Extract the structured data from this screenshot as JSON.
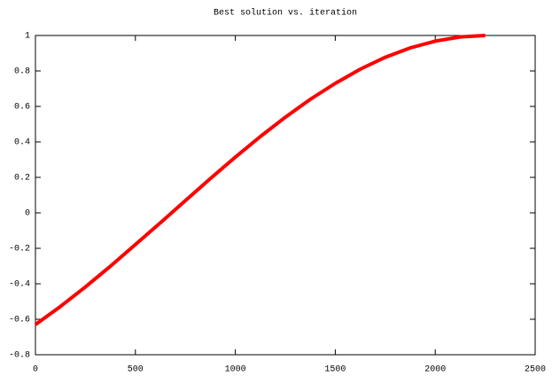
{
  "chart_data": {
    "type": "line",
    "title": "Best solution vs. iteration",
    "x": [
      0,
      125,
      250,
      375,
      500,
      625,
      750,
      875,
      1000,
      1125,
      1250,
      1375,
      1500,
      1625,
      1750,
      1875,
      2000,
      2125,
      2250
    ],
    "series": [
      {
        "color": "#ff0000",
        "values": [
          -0.63,
          -0.528,
          -0.418,
          -0.301,
          -0.179,
          -0.056,
          0.069,
          0.193,
          0.314,
          0.43,
          0.539,
          0.64,
          0.73,
          0.81,
          0.877,
          0.93,
          0.968,
          0.992,
          1.0
        ]
      }
    ],
    "xlim": [
      0,
      2500
    ],
    "xticks": [
      0,
      500,
      1000,
      1500,
      2000,
      2500
    ],
    "ylim": [
      -0.8,
      1
    ],
    "yticks": [
      -0.8,
      -0.6,
      -0.4,
      -0.2,
      0,
      0.2,
      0.4,
      0.6,
      0.8,
      1
    ],
    "grid": false
  }
}
